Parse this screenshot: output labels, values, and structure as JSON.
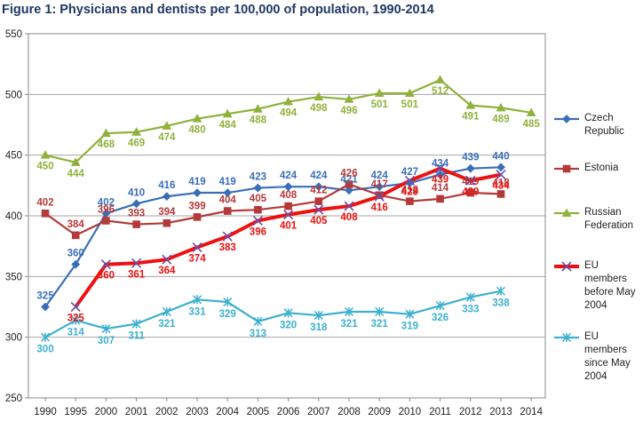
{
  "title": "Figure 1: Physicians and dentists per 100,000 of population, 1990-2014",
  "chart_data": {
    "type": "line",
    "categories": [
      "1990",
      "1995",
      "2000",
      "2001",
      "2002",
      "2003",
      "2004",
      "2005",
      "2006",
      "2007",
      "2008",
      "2009",
      "2010",
      "2011",
      "2012",
      "2013",
      "2014"
    ],
    "ylim": [
      250,
      550
    ],
    "yticks": [
      "250",
      "300",
      "350",
      "400",
      "450",
      "500",
      "550"
    ],
    "grid": true,
    "legend": "right",
    "series": [
      {
        "name": "Czech Republic",
        "color": "#3a6fb8",
        "marker": "diamond",
        "values": [
          325,
          360,
          402,
          410,
          416,
          419,
          419,
          423,
          424,
          424,
          421,
          424,
          427,
          434,
          439,
          440,
          null
        ],
        "labels": [
          "325",
          "360",
          "402",
          "410",
          "416",
          "419",
          "419",
          "423",
          "424",
          "424",
          "421",
          "424",
          "427",
          "434",
          "439",
          "440",
          null
        ]
      },
      {
        "name": "Estonia",
        "color": "#b43a3a",
        "marker": "square",
        "values": [
          402,
          384,
          396,
          393,
          394,
          399,
          404,
          405,
          408,
          412,
          426,
          417,
          412,
          414,
          419,
          418,
          null
        ],
        "labels": [
          "402",
          "384",
          "396",
          "393",
          "394",
          "399",
          "404",
          "405",
          "408",
          "412",
          "426",
          "417",
          "412",
          "414",
          "419",
          "418",
          null
        ]
      },
      {
        "name": "Russian Federation",
        "color": "#8fb23c",
        "marker": "triangle",
        "values": [
          450,
          444,
          468,
          469,
          474,
          480,
          484,
          488,
          494,
          498,
          496,
          501,
          501,
          512,
          491,
          489,
          485
        ],
        "labels": [
          "450",
          "444",
          "468",
          "469",
          "474",
          "480",
          "484",
          "488",
          "494",
          "498",
          "496",
          "501",
          "501",
          "512",
          "491",
          "489",
          "485"
        ]
      },
      {
        "name": "EU members before May 2004",
        "color": "#ee1111",
        "marker": "x",
        "values": [
          null,
          325,
          360,
          361,
          364,
          374,
          383,
          396,
          401,
          405,
          408,
          416,
          429,
          439,
          429,
          434,
          null
        ],
        "labels": [
          null,
          "325",
          "360",
          "361",
          "364",
          "374",
          "383",
          "396",
          "401",
          "405",
          "408",
          "416",
          "429",
          "439",
          "429",
          "434",
          null
        ]
      },
      {
        "name": "EU members since May 2004",
        "color": "#3cb0cf",
        "marker": "star",
        "values": [
          300,
          314,
          307,
          311,
          321,
          331,
          329,
          313,
          320,
          318,
          321,
          321,
          319,
          326,
          333,
          338,
          null
        ],
        "labels": [
          "300",
          "314",
          "307",
          "311",
          "321",
          "331",
          "329",
          "313",
          "320",
          "318",
          "321",
          "321",
          "319",
          "326",
          "333",
          "338",
          null
        ]
      }
    ]
  },
  "legend": {
    "items": [
      {
        "lines": [
          "Czech",
          "Republic"
        ]
      },
      {
        "lines": [
          "Estonia"
        ]
      },
      {
        "lines": [
          "Russian",
          "Federation"
        ]
      },
      {
        "lines": [
          "EU members",
          "before May",
          "2004"
        ]
      },
      {
        "lines": [
          "EU members",
          "since May",
          "2004"
        ]
      }
    ]
  }
}
